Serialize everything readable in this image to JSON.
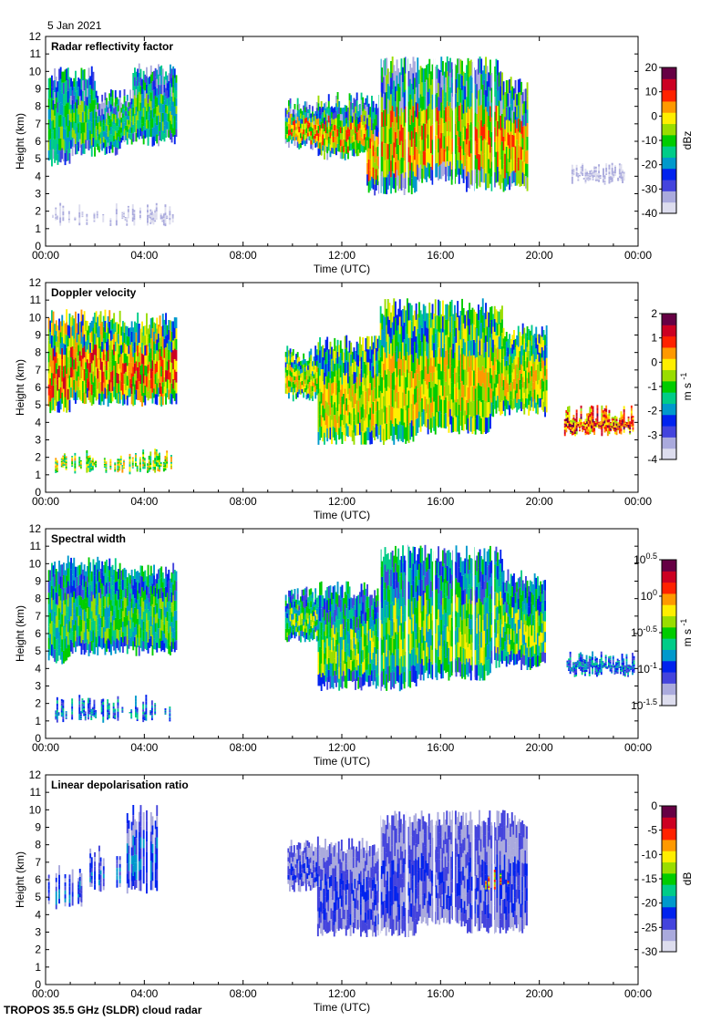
{
  "date": "5 Jan 2021",
  "footer": "TROPOS 35.5 GHz (SLDR) cloud radar",
  "colors": {
    "rainbow": [
      "#ddddee",
      "#aaaadd",
      "#4444dd",
      "#0022ee",
      "#0099cc",
      "#00cc88",
      "#00cc00",
      "#99dd00",
      "#ffee00",
      "#ff9900",
      "#ff2200",
      "#cc0022",
      "#660044"
    ]
  },
  "chart_data": [
    {
      "type": "heatmap",
      "title": "Radar reflectivity factor",
      "xlabel": "Time (UTC)",
      "ylabel": "Height (km)",
      "xlim": [
        0,
        24
      ],
      "ylim": [
        0,
        12
      ],
      "xticks": [
        "00:00",
        "04:00",
        "08:00",
        "12:00",
        "16:00",
        "20:00",
        "00:00"
      ],
      "yticks": [
        "0",
        "1",
        "2",
        "3",
        "4",
        "5",
        "6",
        "7",
        "8",
        "9",
        "10",
        "11",
        "12"
      ],
      "colorbar": {
        "label": "dBz",
        "range": [
          -40,
          20
        ],
        "ticks": [
          "20",
          "10",
          "0",
          "-10",
          "-20",
          "-30",
          "-40"
        ]
      },
      "features": [
        {
          "t0": 0.1,
          "t1": 5.3,
          "base": 5.0,
          "top": 10.0,
          "value": "-25 to -5"
        },
        {
          "t0": 9.7,
          "t1": 19.5,
          "base": 3.0,
          "top": 10.5,
          "value": "-20 to 10"
        },
        {
          "t0": 21.3,
          "t1": 23.4,
          "base": 3.8,
          "top": 4.3,
          "value": "-35"
        },
        {
          "t0": 0.2,
          "t1": 5.2,
          "base": 1.4,
          "top": 2.0,
          "value": "-35"
        }
      ]
    },
    {
      "type": "heatmap",
      "title": "Doppler velocity",
      "xlabel": "Time (UTC)",
      "ylabel": "Height (km)",
      "xlim": [
        0,
        24
      ],
      "ylim": [
        0,
        12
      ],
      "xticks": [
        "00:00",
        "04:00",
        "08:00",
        "12:00",
        "16:00",
        "20:00",
        "00:00"
      ],
      "yticks": [
        "0",
        "1",
        "2",
        "3",
        "4",
        "5",
        "6",
        "7",
        "8",
        "9",
        "10",
        "11",
        "12"
      ],
      "colorbar": {
        "label": "m s-1",
        "label_main": "m s",
        "label_exp": "-1",
        "range": [
          -4,
          2
        ],
        "ticks": [
          "2",
          "1",
          "0",
          "-1",
          "-2",
          "-3",
          "-4"
        ]
      },
      "features": [
        {
          "t0": 0.1,
          "t1": 5.3,
          "base": 5.0,
          "top": 10.0,
          "value": "-2 to 1"
        },
        {
          "t0": 9.7,
          "t1": 20.3,
          "base": 3.0,
          "top": 10.5,
          "value": "-3 to 0"
        },
        {
          "t0": 21.0,
          "t1": 23.8,
          "base": 3.5,
          "top": 4.5,
          "value": "0 to 1"
        },
        {
          "t0": 0.2,
          "t1": 5.2,
          "base": 1.3,
          "top": 2.0,
          "value": "-1 to 0"
        }
      ]
    },
    {
      "type": "heatmap",
      "title": "Spectral width",
      "xlabel": "Time (UTC)",
      "ylabel": "Height (km)",
      "xlim": [
        0,
        24
      ],
      "ylim": [
        0,
        12
      ],
      "xticks": [
        "00:00",
        "04:00",
        "08:00",
        "12:00",
        "16:00",
        "20:00",
        "00:00"
      ],
      "yticks": [
        "0",
        "1",
        "2",
        "3",
        "4",
        "5",
        "6",
        "7",
        "8",
        "9",
        "10",
        "11",
        "12"
      ],
      "colorbar": {
        "label": "m s-1",
        "label_main": "m s",
        "label_exp": "-1",
        "range": [
          -1.5,
          0.5
        ],
        "scale": "log10",
        "ticks": [
          {
            "base": "10",
            "exp": "0.5"
          },
          {
            "base": "10",
            "exp": "0"
          },
          {
            "base": "10",
            "exp": "-0.5"
          },
          {
            "base": "10",
            "exp": "-1"
          },
          {
            "base": "10",
            "exp": "-1.5"
          }
        ]
      },
      "features": [
        {
          "t0": 0.1,
          "t1": 5.3,
          "base": 4.5,
          "top": 10.0,
          "value": "10^-1 to 10^-0.5"
        },
        {
          "t0": 9.7,
          "t1": 20.2,
          "base": 3.0,
          "top": 10.5,
          "value": "10^-1 to 10^-0.5"
        },
        {
          "t0": 21.1,
          "t1": 23.8,
          "base": 3.8,
          "top": 4.5,
          "value": "10^-1"
        },
        {
          "t0": 0.2,
          "t1": 5.2,
          "base": 1.2,
          "top": 2.0,
          "value": "10^-1"
        }
      ]
    },
    {
      "type": "heatmap",
      "title": "Linear depolarisation ratio",
      "xlabel": "Time (UTC)",
      "ylabel": "Height (km)",
      "xlim": [
        0,
        24
      ],
      "ylim": [
        0,
        12
      ],
      "xticks": [
        "00:00",
        "04:00",
        "08:00",
        "12:00",
        "16:00",
        "20:00",
        "00:00"
      ],
      "yticks": [
        "0",
        "1",
        "2",
        "3",
        "4",
        "5",
        "6",
        "7",
        "8",
        "9",
        "10",
        "11",
        "12"
      ],
      "colorbar": {
        "label": "dB",
        "range": [
          -30,
          0
        ],
        "ticks": [
          "0",
          "-5",
          "-10",
          "-15",
          "-20",
          "-25",
          "-30"
        ]
      },
      "features": [
        {
          "t0": 0.1,
          "t1": 4.7,
          "base": 4.5,
          "top": 9.8,
          "value": "-25"
        },
        {
          "t0": 9.8,
          "t1": 19.5,
          "base": 3.0,
          "top": 9.5,
          "value": "-28 to -22"
        },
        {
          "t0": 17.5,
          "t1": 19.0,
          "base": 5.5,
          "top": 6.3,
          "value": "-15 to -10"
        }
      ]
    }
  ]
}
